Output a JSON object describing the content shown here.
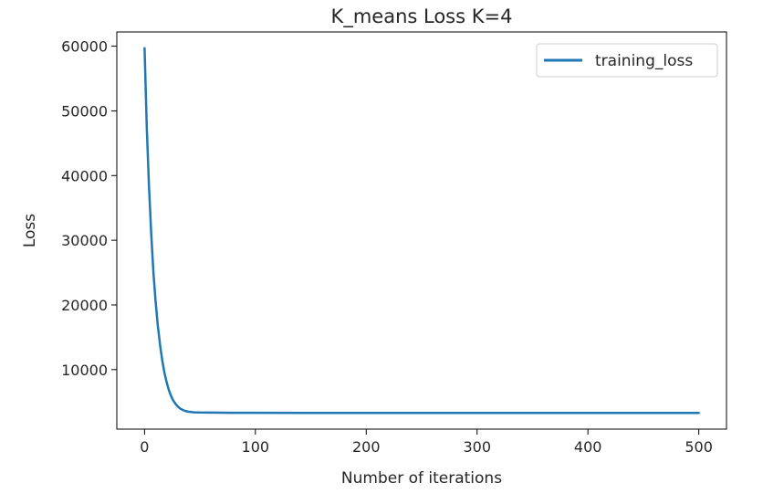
{
  "chart_data": {
    "type": "line",
    "title": "K_means Loss K=4",
    "xlabel": "Number of iterations",
    "ylabel": "Loss",
    "xlim": [
      -25,
      525
    ],
    "ylim": [
      800,
      62200
    ],
    "xticks": [
      0,
      100,
      200,
      300,
      400,
      500
    ],
    "xtick_labels": [
      "0",
      "100",
      "200",
      "300",
      "400",
      "500"
    ],
    "yticks": [
      10000,
      20000,
      30000,
      40000,
      50000,
      60000
    ],
    "ytick_labels": [
      "10000",
      "20000",
      "30000",
      "40000",
      "50000",
      "60000"
    ],
    "grid": false,
    "legend": {
      "position": "top-right",
      "entries": [
        "training_loss"
      ]
    },
    "series": [
      {
        "name": "training_loss",
        "color": "#1f77b4",
        "x": [
          0,
          2,
          4,
          6,
          8,
          10,
          12,
          14,
          16,
          18,
          20,
          22,
          24,
          26,
          28,
          30,
          32,
          34,
          36,
          38,
          40,
          42,
          45,
          50,
          60,
          80,
          100,
          150,
          200,
          300,
          400,
          500
        ],
        "y": [
          59700,
          47500,
          38500,
          31000,
          25000,
          20500,
          16800,
          13800,
          11400,
          9500,
          8000,
          6800,
          5900,
          5200,
          4700,
          4300,
          4000,
          3800,
          3650,
          3550,
          3480,
          3440,
          3400,
          3370,
          3350,
          3330,
          3320,
          3310,
          3305,
          3300,
          3300,
          3300
        ]
      }
    ]
  }
}
